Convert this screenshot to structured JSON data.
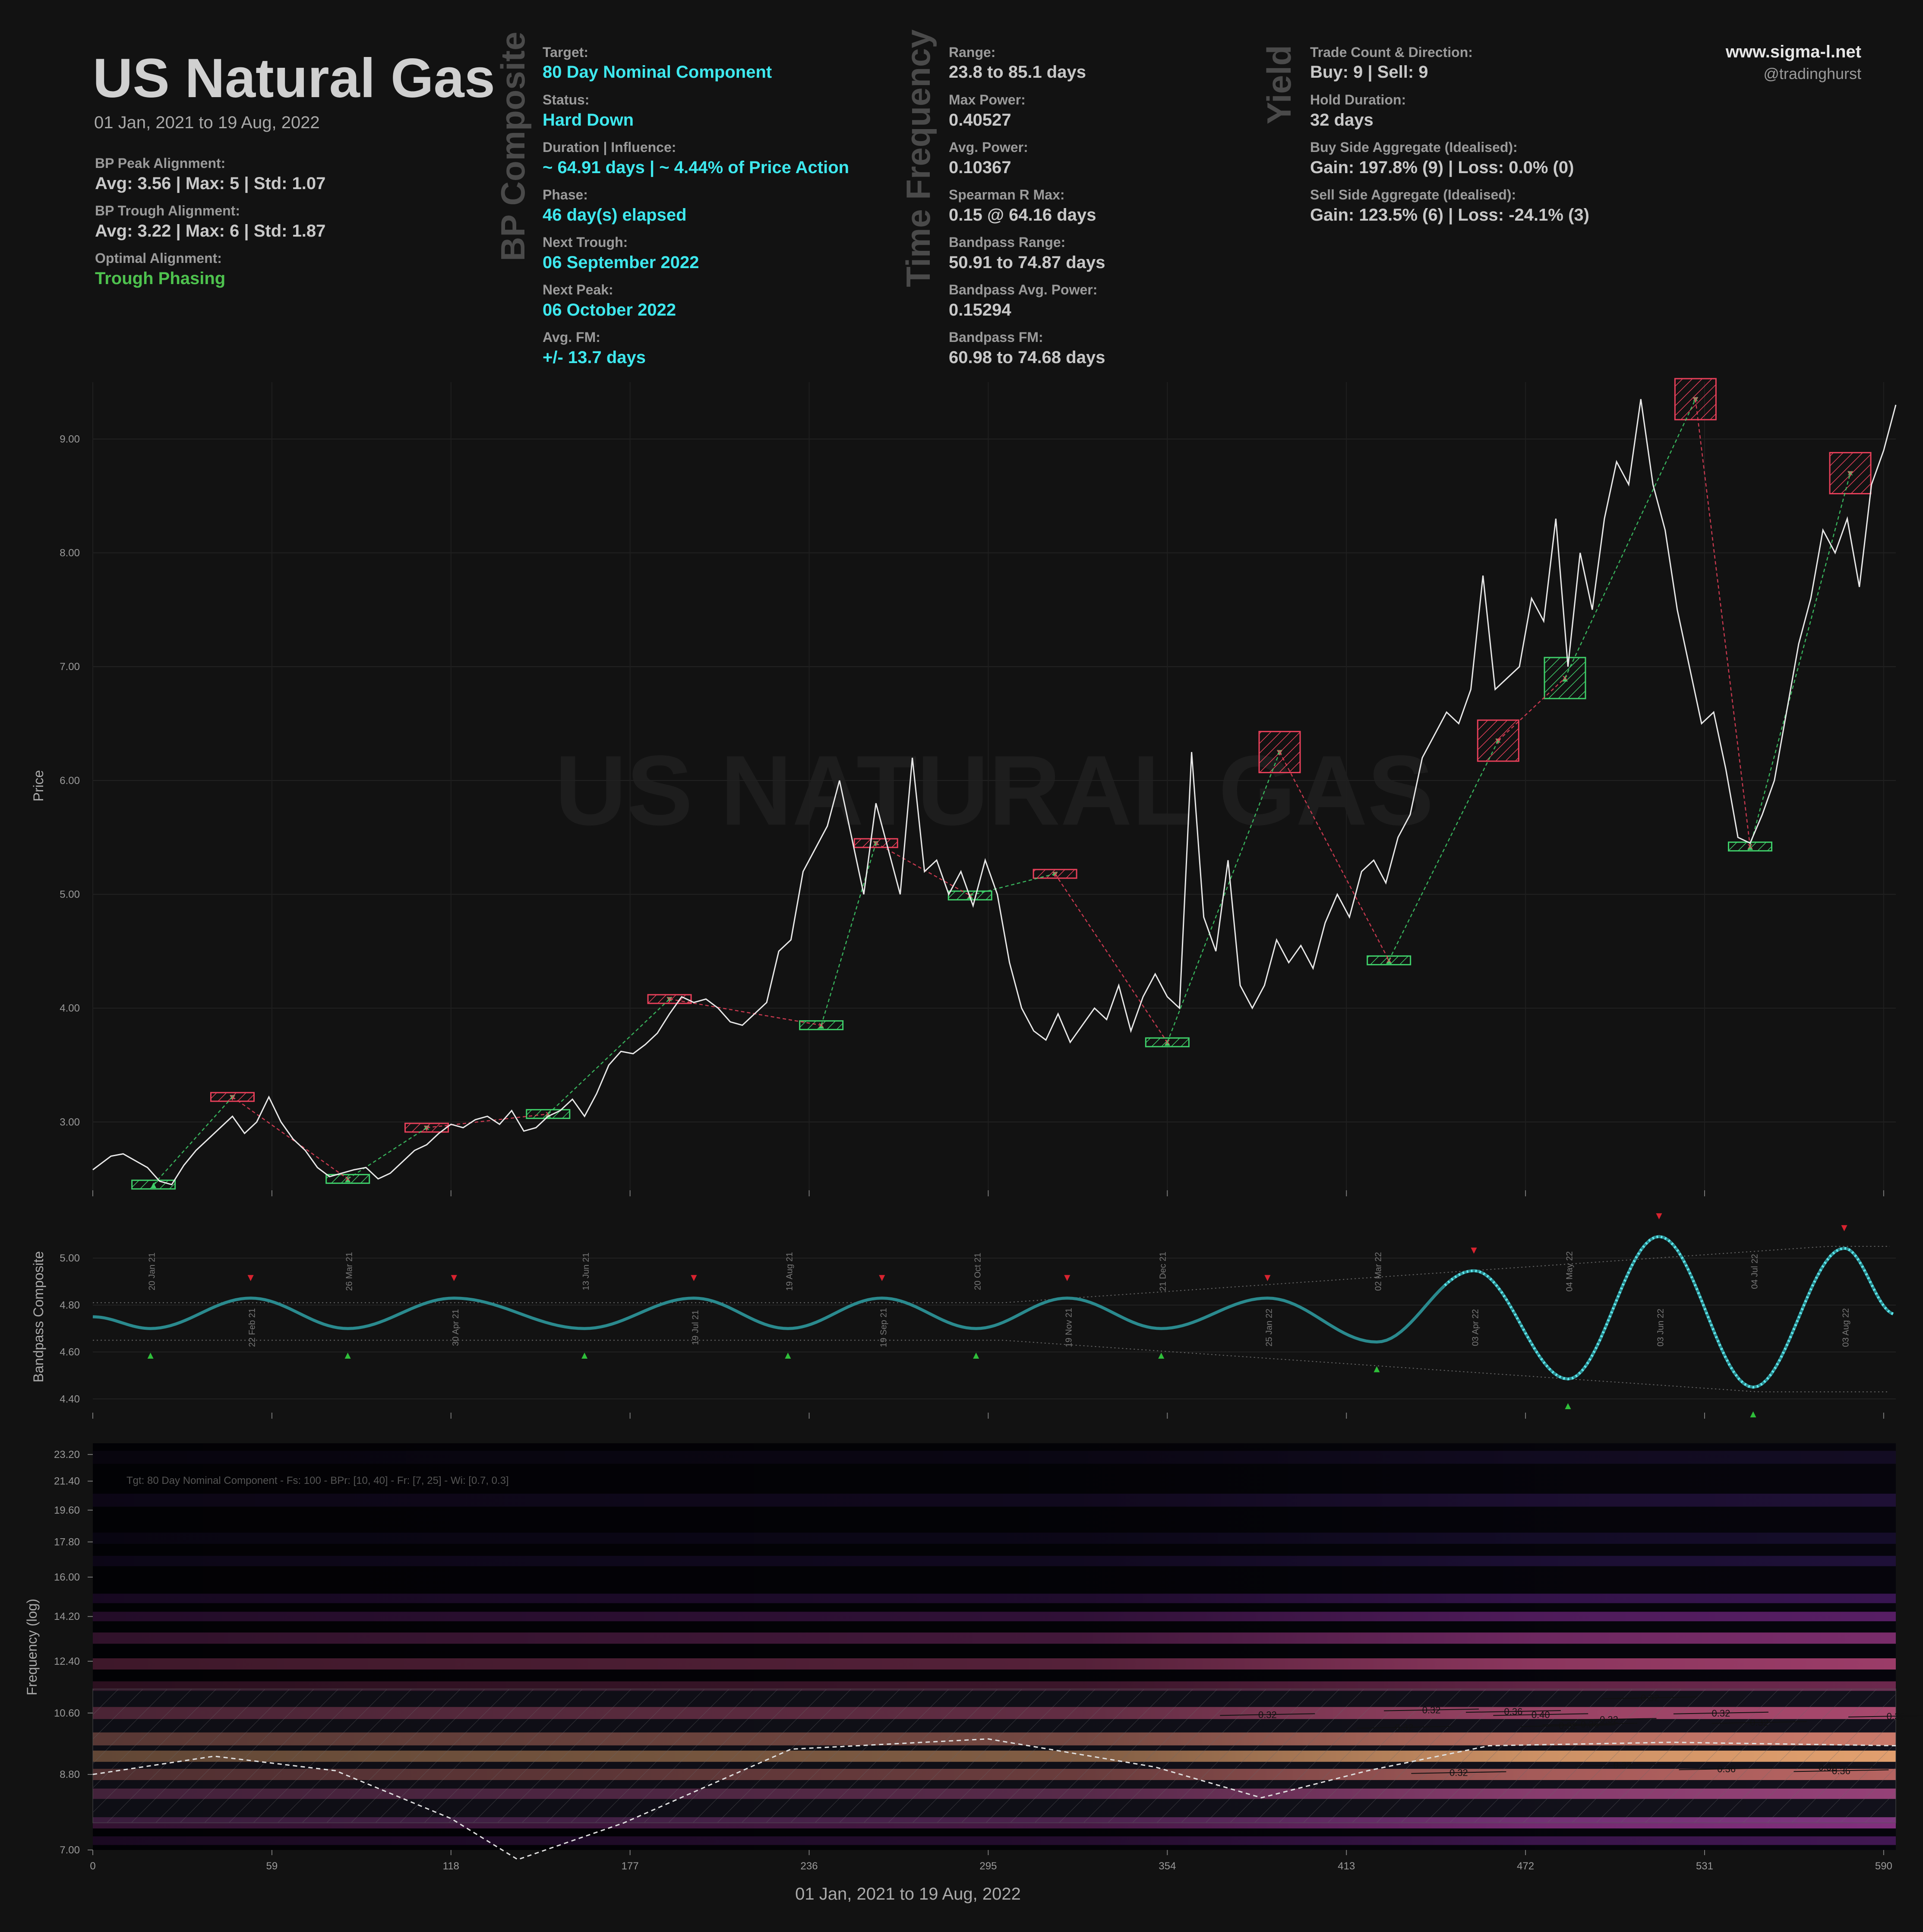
{
  "header": {
    "title": "US Natural Gas",
    "date_range": "01 Jan, 2021 to 19 Aug, 2022",
    "bp_peak_label": "BP Peak Alignment:",
    "bp_peak_value": "Avg: 3.56 | Max: 5 | Std: 1.07",
    "bp_trough_label": "BP Trough Alignment:",
    "bp_trough_value": "Avg: 3.22 | Max: 6 | Std: 1.87",
    "optimal_label": "Optimal Alignment:",
    "optimal_value": "Trough Phasing"
  },
  "bp_composite": {
    "heading": "BP Composite",
    "target_label": "Target:",
    "target": "80 Day Nominal Component",
    "status_label": "Status:",
    "status": "Hard Down",
    "duration_label": "Duration | Influence:",
    "duration": "~ 64.91 days | ~ 4.44% of Price Action",
    "phase_label": "Phase:",
    "phase": "46 day(s) elapsed",
    "next_trough_label": "Next Trough:",
    "next_trough": "06 September 2022",
    "next_peak_label": "Next Peak:",
    "next_peak": "06 October 2022",
    "avg_fm_label": "Avg. FM:",
    "avg_fm": "+/- 13.7 days"
  },
  "time_frequency": {
    "heading": "Time Frequency",
    "range_label": "Range:",
    "range": "23.8 to 85.1 days",
    "max_power_label": "Max Power:",
    "max_power": "0.40527",
    "avg_power_label": "Avg. Power:",
    "avg_power": "0.10367",
    "spearman_label": "Spearman R Max:",
    "spearman": "0.15 @ 64.16 days",
    "bp_range_label": "Bandpass Range:",
    "bp_range": "50.91 to 74.87 days",
    "bp_avg_power_label": "Bandpass Avg. Power:",
    "bp_avg_power": "0.15294",
    "bp_fm_label": "Bandpass FM:",
    "bp_fm": "60.98 to 74.68 days"
  },
  "yield": {
    "heading": "Yield",
    "trade_label": "Trade Count & Direction:",
    "trade": "Buy: 9 | Sell: 9",
    "hold_label": "Hold Duration:",
    "hold": "32 days",
    "buy_label": "Buy Side Aggregate (Idealised):",
    "buy": "Gain: 197.8% (9) | Loss: 0.0% (0)",
    "sell_label": "Sell Side Aggregate (Idealised):",
    "sell": "Gain: 123.5% (6) | Loss: -24.1% (3)"
  },
  "branding": {
    "site": "www.sigma-l.net",
    "handle": "@tradinghurst",
    "watermark": "US NATURAL GAS"
  },
  "colors": {
    "bg": "#121212",
    "price": "#e8e8e8",
    "peak": "#e8405a",
    "trough": "#3fd06a",
    "bandpass": "#2a8a8e",
    "bandpass_hi": "#5ee8ee"
  },
  "chart_data": [
    {
      "type": "line",
      "name": "price",
      "ylabel": "Price",
      "ylim": [
        2.4,
        9.5
      ],
      "yticks": [
        "3.00",
        "4.00",
        "5.00",
        "6.00",
        "7.00",
        "8.00",
        "9.00"
      ],
      "xlim": [
        0,
        594
      ],
      "grid": true,
      "x": [
        0,
        6,
        10,
        14,
        18,
        22,
        26,
        30,
        34,
        38,
        42,
        46,
        50,
        54,
        58,
        62,
        66,
        70,
        74,
        78,
        82,
        86,
        90,
        94,
        98,
        102,
        106,
        110,
        114,
        118,
        122,
        126,
        130,
        134,
        138,
        142,
        146,
        150,
        154,
        158,
        162,
        166,
        170,
        174,
        178,
        182,
        186,
        190,
        194,
        198,
        202,
        206,
        210,
        214,
        218,
        222,
        226,
        230,
        234,
        238,
        242,
        246,
        250,
        254,
        258,
        262,
        266,
        270,
        274,
        278,
        282,
        286,
        290,
        294,
        298,
        302,
        306,
        310,
        314,
        318,
        322,
        326,
        330,
        334,
        338,
        342,
        346,
        350,
        354,
        358,
        362,
        366,
        370,
        374,
        378,
        382,
        386,
        390,
        394,
        398,
        402,
        406,
        410,
        414,
        418,
        422,
        426,
        430,
        434,
        438,
        442,
        446,
        450,
        454,
        458,
        462,
        466,
        470,
        474,
        478,
        482,
        486,
        490,
        494,
        498,
        502,
        506,
        510,
        514,
        518,
        522,
        526,
        530,
        534,
        538,
        542,
        546,
        550,
        554,
        558,
        562,
        566,
        570,
        574,
        578,
        582,
        586,
        590,
        594
      ],
      "values": [
        2.58,
        2.7,
        2.72,
        2.66,
        2.6,
        2.48,
        2.45,
        2.62,
        2.75,
        2.85,
        2.95,
        3.05,
        2.9,
        3.0,
        3.22,
        3.0,
        2.85,
        2.75,
        2.6,
        2.52,
        2.55,
        2.58,
        2.6,
        2.5,
        2.55,
        2.65,
        2.75,
        2.8,
        2.9,
        2.98,
        2.95,
        3.02,
        3.05,
        2.98,
        3.1,
        2.92,
        2.95,
        3.05,
        3.1,
        3.2,
        3.05,
        3.25,
        3.5,
        3.62,
        3.6,
        3.68,
        3.78,
        3.95,
        4.1,
        4.05,
        4.08,
        4.0,
        3.88,
        3.85,
        3.95,
        4.05,
        4.5,
        4.6,
        5.2,
        5.4,
        5.6,
        6.0,
        5.5,
        5.0,
        5.8,
        5.4,
        5.0,
        6.2,
        5.2,
        5.3,
        5.0,
        5.2,
        4.9,
        5.3,
        5.0,
        4.4,
        4.0,
        3.8,
        3.72,
        3.95,
        3.7,
        3.85,
        4.0,
        3.9,
        4.2,
        3.8,
        4.1,
        4.3,
        4.1,
        4.0,
        6.25,
        4.8,
        4.5,
        5.3,
        4.2,
        4.0,
        4.2,
        4.6,
        4.4,
        4.55,
        4.35,
        4.75,
        5.0,
        4.8,
        5.2,
        5.3,
        5.1,
        5.5,
        5.7,
        6.2,
        6.4,
        6.6,
        6.5,
        6.8,
        7.8,
        6.8,
        6.9,
        7.0,
        7.6,
        7.4,
        8.3,
        7.0,
        8.0,
        7.5,
        8.3,
        8.8,
        8.6,
        9.35,
        8.6,
        8.2,
        7.5,
        7.0,
        6.5,
        6.6,
        6.1,
        5.5,
        5.45,
        5.7,
        6.0,
        6.6,
        7.2,
        7.6,
        8.2,
        8.0,
        8.3,
        7.7,
        8.6,
        8.9,
        9.3
      ],
      "peaks": [
        [
          46,
          3.22
        ],
        [
          110,
          2.95
        ],
        [
          190,
          4.08
        ],
        [
          258,
          5.45
        ],
        [
          317,
          5.18
        ],
        [
          391,
          6.25
        ],
        [
          463,
          6.35
        ],
        [
          528,
          9.35
        ],
        [
          579,
          8.7
        ]
      ],
      "troughs": [
        [
          20,
          2.45
        ],
        [
          84,
          2.5
        ],
        [
          150,
          3.07
        ],
        [
          240,
          3.85
        ],
        [
          289,
          4.99
        ],
        [
          354,
          3.7
        ],
        [
          427,
          4.42
        ],
        [
          485,
          6.9
        ],
        [
          546,
          5.42
        ]
      ]
    },
    {
      "type": "line",
      "name": "bandpass composite",
      "ylabel": "Bandpass Composite",
      "ylim": [
        4.36,
        5.14
      ],
      "yticks": [
        "4.40",
        "4.60",
        "4.80",
        "5.00"
      ],
      "xlim": [
        0,
        594
      ],
      "dates": [
        "20 Jan 21",
        "22 Feb 21",
        "26 Mar 21",
        "30 Apr 21",
        "13 Jun 21",
        "19 Jul 21",
        "19 Aug 21",
        "19 Sep 21",
        "20 Oct 21",
        "19 Nov 21",
        "21 Dec 21",
        "25 Jan 22",
        "02 Mar 22",
        "03 Apr 22",
        "04 May 22",
        "03 Jun 22",
        "04 Jul 22",
        "03 Aug 22"
      ],
      "date_x": [
        19,
        52,
        84,
        119,
        162,
        198,
        229,
        260,
        291,
        321,
        352,
        387,
        423,
        455,
        486,
        516,
        547,
        577
      ]
    },
    {
      "type": "heatmap",
      "name": "time frequency",
      "ylabel": "Frequency (log)",
      "ylim": [
        7.0,
        24.0
      ],
      "yticks": [
        "7.00",
        "8.80",
        "10.60",
        "12.40",
        "14.20",
        "16.00",
        "17.80",
        "19.60",
        "21.40",
        "23.20"
      ],
      "xticks": [
        "0",
        "59",
        "118",
        "177",
        "236",
        "295",
        "354",
        "413",
        "472",
        "531",
        "590"
      ],
      "xlabel": "01 Jan, 2021 to 19 Aug, 2022",
      "annotation": "Tgt: 80 Day Nominal Component - Fs: 100 - BPr: [10, 40] - Fr: [7, 25] - Wi: [0.7, 0.3]",
      "contour_labels": [
        "0.32",
        "0.32",
        "0.32",
        "0.32",
        "0.32",
        "0.32",
        "0.36",
        "0.40",
        "0.32",
        "0.32",
        "0.32",
        "0.32",
        "0.36",
        "0.32",
        "0.32",
        "0.36",
        "0.36"
      ]
    }
  ]
}
